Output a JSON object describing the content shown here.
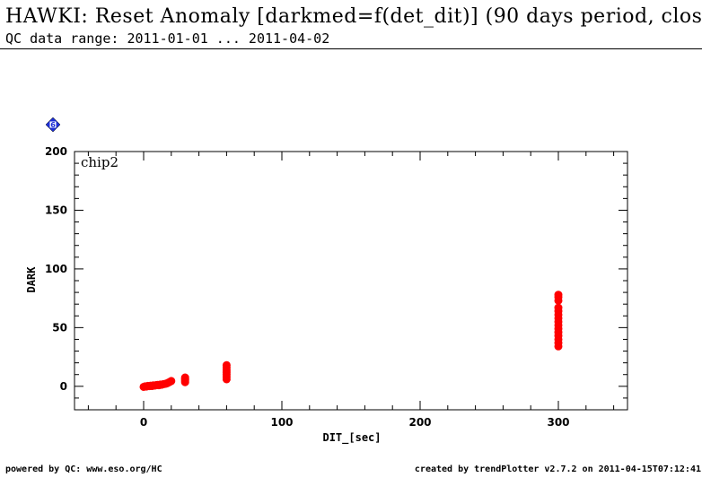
{
  "header": {
    "title": "HAWKI: Reset Anomaly [darkmed=f(det_dit)] (90 days period, clos",
    "subtitle": "QC data range: 2011-01-01 ... 2011-04-02"
  },
  "badge": {
    "number": "6",
    "color": "#1c2fd6",
    "icon": "diamond-badge-icon"
  },
  "footer": {
    "left": "powered by QC: www.eso.org/HC",
    "right": "created by trendPlotter v2.7.2 on 2011-04-15T07:12:41"
  },
  "chart_data": {
    "type": "scatter",
    "title": "",
    "panel_label": "chip2",
    "xlabel": "DIT_[sec]",
    "ylabel": "DARK",
    "xlim": [
      -50,
      350
    ],
    "ylim": [
      -20,
      200
    ],
    "xticks": [
      0,
      100,
      200,
      300
    ],
    "yticks": [
      0,
      50,
      100,
      150,
      200
    ],
    "marker_color": "#ff0000",
    "series": [
      {
        "points": [
          [
            0,
            -0.5
          ],
          [
            1,
            0
          ],
          [
            2,
            -0.2
          ],
          [
            3,
            0.3
          ],
          [
            4,
            0.1
          ],
          [
            5,
            0.5
          ],
          [
            6,
            0.2
          ],
          [
            7,
            0.8
          ],
          [
            8,
            0.6
          ],
          [
            9,
            1.0
          ],
          [
            10,
            1.2
          ],
          [
            11,
            0.9
          ],
          [
            12,
            1.5
          ],
          [
            13,
            1.3
          ],
          [
            14,
            1.8
          ],
          [
            15,
            2.0
          ],
          [
            16,
            2.2
          ],
          [
            17,
            2.6
          ],
          [
            18,
            3.2
          ],
          [
            19,
            3.8
          ],
          [
            20,
            4.5
          ],
          [
            30,
            3.5
          ],
          [
            30,
            4.5
          ],
          [
            30,
            5.5
          ],
          [
            30,
            6.5
          ],
          [
            30,
            7.5
          ],
          [
            60,
            6
          ],
          [
            60,
            8
          ],
          [
            60,
            10
          ],
          [
            60,
            12
          ],
          [
            60,
            14
          ],
          [
            60,
            16
          ],
          [
            60,
            18
          ],
          [
            300,
            34
          ],
          [
            300,
            37
          ],
          [
            300,
            40
          ],
          [
            300,
            43
          ],
          [
            300,
            46
          ],
          [
            300,
            49
          ],
          [
            300,
            52
          ],
          [
            300,
            55
          ],
          [
            300,
            58
          ],
          [
            300,
            61
          ],
          [
            300,
            64
          ],
          [
            300,
            67
          ],
          [
            300,
            73
          ],
          [
            300,
            76
          ],
          [
            300,
            78
          ]
        ]
      }
    ]
  }
}
